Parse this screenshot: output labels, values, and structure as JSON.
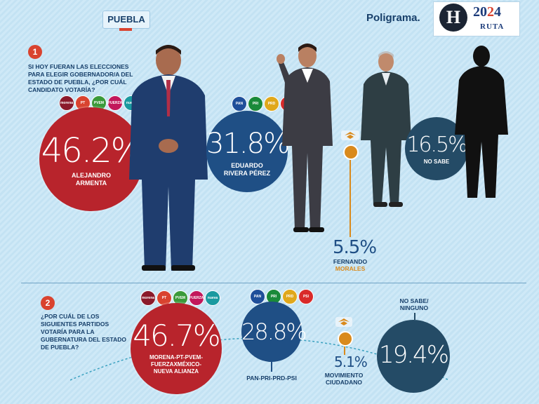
{
  "header": {
    "region_tag": "PUEBLA",
    "brand": "Poligrama.",
    "logo_letter": "H",
    "logo_year_a": "20",
    "logo_year_b": "2",
    "logo_year_c": "4",
    "logo_sub": "RUTA"
  },
  "section1": {
    "number": "1",
    "question": "SI HOY FUERAN LAS ELECCIONES PARA ELEGIR GOBERNADOR/A DEL ESTADO DE PUEBLA, ¿POR CUÁL CANDIDATO VOTARÍA?",
    "parties_armenta": [
      "morena",
      "PT",
      "PVEM",
      "FUERZA MÉXICO",
      "nueva alianza"
    ],
    "parties_rivera": [
      "PAN",
      "PRI",
      "PRD",
      "PSI"
    ]
  },
  "section2": {
    "number": "2",
    "question": "¿POR CUÁL DE LOS SIGUIENTES PARTIDOS VOTARÍA PARA LA GUBERNATURA DEL ESTADO DE PUEBLA?",
    "parties_morena": [
      "morena",
      "PT",
      "PVEM",
      "FUERZA MÉXICO",
      "nueva alianza"
    ],
    "parties_pan": [
      "PAN",
      "PRI",
      "PRD",
      "PSI"
    ]
  },
  "chart_data": [
    {
      "type": "bubble",
      "categories": [
        "ALEJANDRO ARMENTA",
        "EDUARDO RIVERA PÉREZ",
        "FERNANDO MORALES",
        "NO SABE"
      ],
      "values": [
        46.2,
        31.8,
        5.5,
        16.5
      ],
      "labels": [
        "46.2%",
        "31.8%",
        "5.5%",
        "16.5%"
      ],
      "display_names": [
        [
          "ALEJANDRO",
          "ARMENTA"
        ],
        [
          "EDUARDO",
          "RIVERA PÉREZ"
        ],
        [
          "FERNANDO",
          "MORALES"
        ],
        [
          "NO SABE"
        ]
      ],
      "colors": [
        "#b8242c",
        "#1f4f85",
        "#d98a1c",
        "#244b66"
      ]
    },
    {
      "type": "bubble",
      "categories": [
        "MORENA-PT-PVEM-FUERZAXMÉXICO-NUEVA ALIANZA",
        "PAN-PRI-PRD-PSI",
        "MOVIMIENTO CIUDADANO",
        "NO SABE/ NINGUNO"
      ],
      "values": [
        46.7,
        28.8,
        5.1,
        19.4
      ],
      "labels": [
        "46.7%",
        "28.8%",
        "5.1%",
        "19.4%"
      ],
      "display_names": [
        [
          "MORENA-PT-PVEM-",
          "FUERZAXMÉXICO-",
          "NUEVA ALIANZA"
        ],
        [
          "PAN-PRI-PRD-PSI"
        ],
        [
          "MOVIMIENTO",
          "CIUDADANO"
        ],
        [
          "NO SABE/",
          "NINGUNO"
        ]
      ],
      "colors": [
        "#b8242c",
        "#1f4f85",
        "#d98a1c",
        "#244b66"
      ]
    }
  ]
}
